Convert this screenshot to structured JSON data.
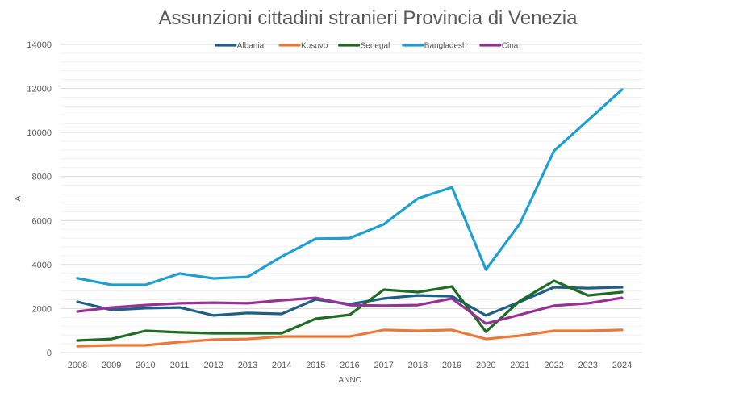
{
  "chart_data": {
    "type": "line",
    "title": "Assunzioni cittadini stranieri Provincia di Venezia",
    "xlabel": "ANNO",
    "ylabel": "A",
    "ylim": [
      0,
      14000
    ],
    "yticks": [
      "0",
      "2000",
      "4000",
      "6000",
      "8000",
      "10000",
      "12000",
      "14000"
    ],
    "grid": true,
    "legend_position": "top",
    "categories": [
      "2008",
      "2009",
      "2010",
      "2011",
      "2012",
      "2013",
      "2014",
      "2015",
      "2016",
      "2017",
      "2018",
      "2019",
      "2020",
      "2021",
      "2022",
      "2023",
      "2024"
    ],
    "series": [
      {
        "name": "Albania",
        "color": "#1f5f86",
        "values": [
          2310,
          1940,
          2020,
          2050,
          1690,
          1800,
          1760,
          2420,
          2200,
          2460,
          2600,
          2560,
          1690,
          2310,
          2970,
          2930,
          2970
        ]
      },
      {
        "name": "Kosovo",
        "color": "#e97a3a",
        "values": [
          290,
          330,
          330,
          480,
          590,
          620,
          730,
          730,
          730,
          1030,
          990,
          1030,
          620,
          770,
          990,
          990,
          1030
        ]
      },
      {
        "name": "Senegal",
        "color": "#1e6b23",
        "values": [
          550,
          620,
          990,
          920,
          880,
          880,
          880,
          1540,
          1720,
          2860,
          2750,
          3000,
          950,
          2350,
          3260,
          2600,
          2750
        ]
      },
      {
        "name": "Bangladesh",
        "color": "#1e9fd2",
        "values": [
          3380,
          3080,
          3080,
          3590,
          3370,
          3440,
          4360,
          5170,
          5200,
          5830,
          7000,
          7510,
          3770,
          5860,
          9160,
          10550,
          11950
        ]
      },
      {
        "name": "Cina",
        "color": "#973195",
        "values": [
          1870,
          2050,
          2160,
          2240,
          2270,
          2240,
          2380,
          2490,
          2160,
          2130,
          2160,
          2460,
          1320,
          1720,
          2130,
          2240,
          2490
        ]
      }
    ]
  }
}
